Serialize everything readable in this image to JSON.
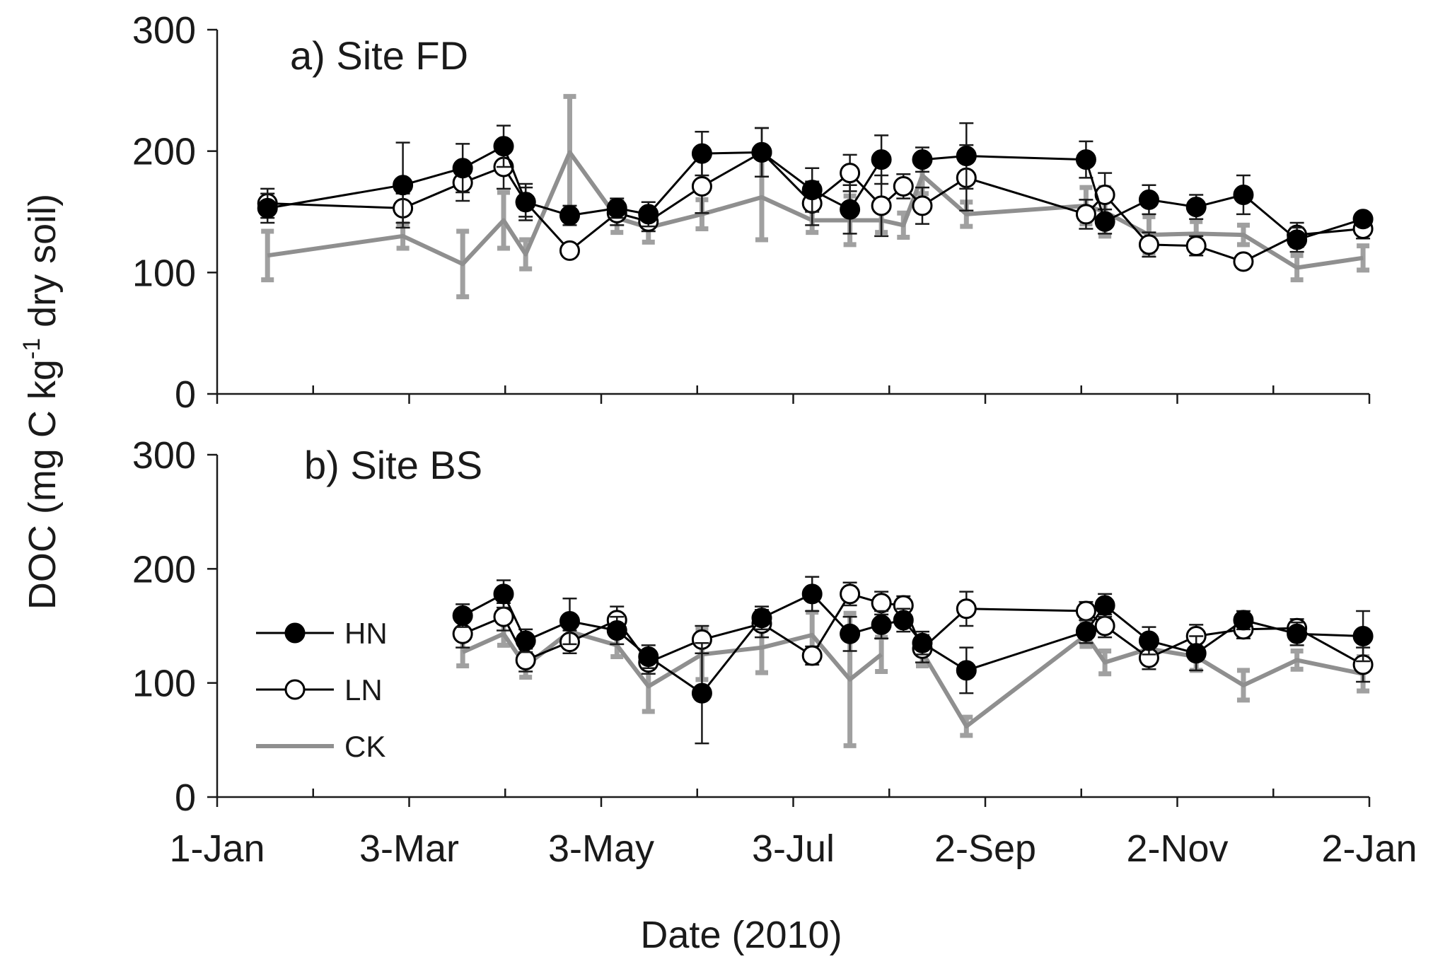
{
  "chart_data": {
    "type": "line",
    "ylabel_main": "DOC (mg C kg",
    "ylabel_sup": "-1",
    "ylabel_tail": " dry soil)",
    "xlabel": "Date (2010)",
    "x_domain_days": [
      0,
      366
    ],
    "x_ticks": [
      {
        "day": 0,
        "label": "1-Jan"
      },
      {
        "day": 61,
        "label": "3-Mar"
      },
      {
        "day": 122,
        "label": "3-May"
      },
      {
        "day": 183,
        "label": "3-Jul"
      },
      {
        "day": 244,
        "label": "2-Sep"
      },
      {
        "day": 305,
        "label": "2-Nov"
      },
      {
        "day": 366,
        "label": "2-Jan"
      }
    ],
    "legend": [
      {
        "key": "HN",
        "label": "HN"
      },
      {
        "key": "LN",
        "label": "LN"
      },
      {
        "key": "CK",
        "label": "CK"
      }
    ],
    "colors": {
      "HN": "#000000",
      "LN": "#000000",
      "CK": "#8f8f8f",
      "CK_err": "#a0a0a0"
    },
    "panels": [
      {
        "id": "FD",
        "title": "a) Site FD",
        "ylim": [
          0,
          300
        ],
        "yticks": [
          0,
          100,
          200,
          300
        ],
        "series": [
          {
            "name": "HN",
            "segments": [
              [
                {
                  "x": 16,
                  "y": 153,
                  "e": 12
                },
                {
                  "x": 59,
                  "y": 172,
                  "e": 35
                },
                {
                  "x": 78,
                  "y": 186,
                  "e": 20
                },
                {
                  "x": 91,
                  "y": 204,
                  "e": 17
                },
                {
                  "x": 98,
                  "y": 158,
                  "e": 12
                },
                {
                  "x": 112,
                  "y": 147,
                  "e": 8
                },
                {
                  "x": 127,
                  "y": 153,
                  "e": 8
                },
                {
                  "x": 137,
                  "y": 148,
                  "e": 10
                },
                {
                  "x": 154,
                  "y": 198,
                  "e": 18
                },
                {
                  "x": 173,
                  "y": 199,
                  "e": 20
                },
                {
                  "x": 189,
                  "y": 168,
                  "e": 18
                },
                {
                  "x": 201,
                  "y": 152,
                  "e": 20
                },
                {
                  "x": 211,
                  "y": 193,
                  "e": 20
                }
              ],
              [
                {
                  "x": 224,
                  "y": 193,
                  "e": 10
                },
                {
                  "x": 238,
                  "y": 196,
                  "e": 27
                },
                {
                  "x": 276,
                  "y": 193,
                  "e": 15
                },
                {
                  "x": 282,
                  "y": 142,
                  "e": 10
                },
                {
                  "x": 296,
                  "y": 160,
                  "e": 12
                },
                {
                  "x": 311,
                  "y": 154,
                  "e": 10
                },
                {
                  "x": 326,
                  "y": 164,
                  "e": 16
                },
                {
                  "x": 343,
                  "y": 127,
                  "e": 10
                },
                {
                  "x": 364,
                  "y": 144,
                  "e": 5
                }
              ]
            ]
          },
          {
            "name": "LN",
            "segments": [
              [
                {
                  "x": 16,
                  "y": 157,
                  "e": 12
                },
                {
                  "x": 59,
                  "y": 153,
                  "e": 12
                },
                {
                  "x": 78,
                  "y": 174,
                  "e": 15
                },
                {
                  "x": 91,
                  "y": 187,
                  "e": 18
                },
                {
                  "x": 98,
                  "y": 158,
                  "e": 15
                },
                {
                  "x": 112,
                  "y": 118,
                  "e": 5
                },
                {
                  "x": 127,
                  "y": 149,
                  "e": 10
                },
                {
                  "x": 137,
                  "y": 142,
                  "e": 8
                },
                {
                  "x": 154,
                  "y": 171,
                  "e": 22
                },
                {
                  "x": 173,
                  "y": 199,
                  "e": 20
                },
                {
                  "x": 189,
                  "y": 157,
                  "e": 18
                },
                {
                  "x": 201,
                  "y": 182,
                  "e": 15
                },
                {
                  "x": 211,
                  "y": 155,
                  "e": 25
                },
                {
                  "x": 218,
                  "y": 171,
                  "e": 10
                },
                {
                  "x": 224,
                  "y": 155,
                  "e": 15
                },
                {
                  "x": 238,
                  "y": 178,
                  "e": 27
                },
                {
                  "x": 276,
                  "y": 148,
                  "e": 12
                },
                {
                  "x": 282,
                  "y": 164,
                  "e": 18
                },
                {
                  "x": 296,
                  "y": 123,
                  "e": 10
                },
                {
                  "x": 311,
                  "y": 122,
                  "e": 8
                },
                {
                  "x": 326,
                  "y": 109,
                  "e": 5
                },
                {
                  "x": 343,
                  "y": 131,
                  "e": 10
                },
                {
                  "x": 364,
                  "y": 136,
                  "e": 8
                }
              ]
            ]
          },
          {
            "name": "CK",
            "segments": [
              [
                {
                  "x": 16,
                  "y": 114,
                  "e": 20
                },
                {
                  "x": 59,
                  "y": 130,
                  "e": 10
                },
                {
                  "x": 78,
                  "y": 107,
                  "e": 27
                },
                {
                  "x": 91,
                  "y": 143,
                  "e": 23
                },
                {
                  "x": 98,
                  "y": 115,
                  "e": 12
                },
                {
                  "x": 112,
                  "y": 199,
                  "e": 46
                },
                {
                  "x": 127,
                  "y": 145,
                  "e": 12
                },
                {
                  "x": 137,
                  "y": 137,
                  "e": 12
                },
                {
                  "x": 154,
                  "y": 148,
                  "e": 12
                },
                {
                  "x": 173,
                  "y": 162,
                  "e": 35
                },
                {
                  "x": 189,
                  "y": 143,
                  "e": 10
                },
                {
                  "x": 201,
                  "y": 143,
                  "e": 20
                },
                {
                  "x": 211,
                  "y": 143,
                  "e": 10
                },
                {
                  "x": 218,
                  "y": 139,
                  "e": 10
                },
                {
                  "x": 224,
                  "y": 180,
                  "e": 15
                },
                {
                  "x": 238,
                  "y": 148,
                  "e": 10
                },
                {
                  "x": 276,
                  "y": 155,
                  "e": 15
                },
                {
                  "x": 282,
                  "y": 150,
                  "e": 20
                },
                {
                  "x": 296,
                  "y": 131,
                  "e": 15
                },
                {
                  "x": 311,
                  "y": 132,
                  "e": 10
                },
                {
                  "x": 326,
                  "y": 131,
                  "e": 8
                },
                {
                  "x": 343,
                  "y": 104,
                  "e": 10
                },
                {
                  "x": 364,
                  "y": 112,
                  "e": 10
                }
              ]
            ]
          }
        ]
      },
      {
        "id": "BS",
        "title": "b) Site BS",
        "ylim": [
          0,
          300
        ],
        "yticks": [
          0,
          100,
          200,
          300
        ],
        "series": [
          {
            "name": "HN",
            "segments": [
              [
                {
                  "x": 78,
                  "y": 159,
                  "e": 10
                },
                {
                  "x": 91,
                  "y": 178,
                  "e": 12
                },
                {
                  "x": 98,
                  "y": 137,
                  "e": 10
                },
                {
                  "x": 112,
                  "y": 154,
                  "e": 20
                },
                {
                  "x": 127,
                  "y": 146,
                  "e": 12
                },
                {
                  "x": 137,
                  "y": 123,
                  "e": 10
                },
                {
                  "x": 154,
                  "y": 91,
                  "e": 44
                },
                {
                  "x": 173,
                  "y": 157,
                  "e": 10
                },
                {
                  "x": 189,
                  "y": 178,
                  "e": 15
                },
                {
                  "x": 201,
                  "y": 143,
                  "e": 15
                },
                {
                  "x": 211,
                  "y": 151,
                  "e": 12
                },
                {
                  "x": 218,
                  "y": 155,
                  "e": 10
                },
                {
                  "x": 224,
                  "y": 135,
                  "e": 10
                },
                {
                  "x": 238,
                  "y": 111,
                  "e": 20
                },
                {
                  "x": 276,
                  "y": 145,
                  "e": 10
                },
                {
                  "x": 282,
                  "y": 168,
                  "e": 10
                },
                {
                  "x": 296,
                  "y": 137,
                  "e": 12
                },
                {
                  "x": 311,
                  "y": 126,
                  "e": 15
                },
                {
                  "x": 326,
                  "y": 155,
                  "e": 8
                },
                {
                  "x": 343,
                  "y": 143,
                  "e": 10
                },
                {
                  "x": 364,
                  "y": 141,
                  "e": 22
                }
              ]
            ]
          },
          {
            "name": "LN",
            "segments": [
              [
                {
                  "x": 78,
                  "y": 143,
                  "e": 12
                },
                {
                  "x": 91,
                  "y": 158,
                  "e": 12
                },
                {
                  "x": 98,
                  "y": 120,
                  "e": 10
                },
                {
                  "x": 112,
                  "y": 136,
                  "e": 10
                },
                {
                  "x": 127,
                  "y": 155,
                  "e": 12
                },
                {
                  "x": 137,
                  "y": 118,
                  "e": 10
                },
                {
                  "x": 154,
                  "y": 138,
                  "e": 12
                },
                {
                  "x": 173,
                  "y": 152,
                  "e": 12
                },
                {
                  "x": 189,
                  "y": 124,
                  "e": 8
                },
                {
                  "x": 201,
                  "y": 178,
                  "e": 10
                },
                {
                  "x": 211,
                  "y": 170,
                  "e": 10
                },
                {
                  "x": 218,
                  "y": 168,
                  "e": 8
                },
                {
                  "x": 224,
                  "y": 130,
                  "e": 12
                },
                {
                  "x": 238,
                  "y": 165,
                  "e": 15
                },
                {
                  "x": 276,
                  "y": 163,
                  "e": 8
                },
                {
                  "x": 282,
                  "y": 150,
                  "e": 10
                },
                {
                  "x": 296,
                  "y": 122,
                  "e": 10
                },
                {
                  "x": 311,
                  "y": 141,
                  "e": 10
                },
                {
                  "x": 326,
                  "y": 147,
                  "e": 8
                },
                {
                  "x": 343,
                  "y": 148,
                  "e": 8
                },
                {
                  "x": 364,
                  "y": 116,
                  "e": 15
                }
              ]
            ]
          },
          {
            "name": "CK",
            "segments": [
              [
                {
                  "x": 78,
                  "y": 127,
                  "e": 12
                },
                {
                  "x": 91,
                  "y": 143,
                  "e": 10
                },
                {
                  "x": 98,
                  "y": 115,
                  "e": 10
                },
                {
                  "x": 112,
                  "y": 145,
                  "e": 12
                },
                {
                  "x": 127,
                  "y": 133,
                  "e": 10
                },
                {
                  "x": 137,
                  "y": 97,
                  "e": 22
                },
                {
                  "x": 154,
                  "y": 125,
                  "e": 22
                },
                {
                  "x": 173,
                  "y": 131,
                  "e": 22
                },
                {
                  "x": 189,
                  "y": 142,
                  "e": 20
                },
                {
                  "x": 201,
                  "y": 103,
                  "e": 58
                },
                {
                  "x": 211,
                  "y": 125,
                  "e": 15
                }
              ],
              [
                {
                  "x": 224,
                  "y": 127,
                  "e": 12
                },
                {
                  "x": 238,
                  "y": 62,
                  "e": 8
                },
                {
                  "x": 276,
                  "y": 142,
                  "e": 10
                },
                {
                  "x": 282,
                  "y": 118,
                  "e": 10
                },
                {
                  "x": 296,
                  "y": 130,
                  "e": 10
                },
                {
                  "x": 311,
                  "y": 123,
                  "e": 12
                },
                {
                  "x": 326,
                  "y": 98,
                  "e": 13
                },
                {
                  "x": 343,
                  "y": 120,
                  "e": 8
                },
                {
                  "x": 364,
                  "y": 108,
                  "e": 15
                }
              ]
            ]
          }
        ]
      }
    ]
  }
}
